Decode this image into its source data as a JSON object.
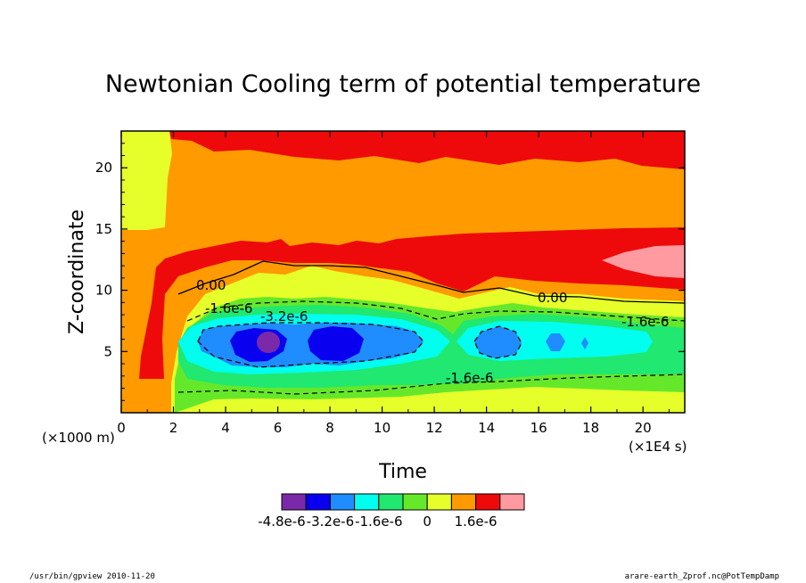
{
  "chart_data": {
    "type": "heatmap",
    "title": "Newtonian Cooling term of potential temperature",
    "xlabel": "Time",
    "ylabel": "Z-coordinate",
    "x_unit": "(×1E4 s)",
    "y_unit": "(×1000 m)",
    "x_range": [
      0,
      21.6
    ],
    "y_range": [
      0,
      23
    ],
    "x_ticks": [
      "0",
      "2",
      "4",
      "6",
      "8",
      "10",
      "12",
      "14",
      "16",
      "18",
      "20"
    ],
    "y_ticks": [
      "5",
      "10",
      "15",
      "20"
    ],
    "levels": [
      {
        "from": -4.8e-06,
        "to": -4e-06,
        "color": "#7a2aa8"
      },
      {
        "from": -4e-06,
        "to": -3.2e-06,
        "color": "#0a00f0"
      },
      {
        "from": -3.2e-06,
        "to": -2.4e-06,
        "color": "#1f8cff"
      },
      {
        "from": -2.4e-06,
        "to": -1.6e-06,
        "color": "#00ffee"
      },
      {
        "from": -1.6e-06,
        "to": -8e-07,
        "color": "#20e870"
      },
      {
        "from": -8e-07,
        "to": 0,
        "color": "#66e82a"
      },
      {
        "from": 0,
        "to": 8e-07,
        "color": "#e6ff2a"
      },
      {
        "from": 8e-07,
        "to": 1.6e-06,
        "color": "#ff9a00"
      },
      {
        "from": 1.6e-06,
        "to": 2.4e-06,
        "color": "#ee0a0a"
      },
      {
        "from": 2.4e-06,
        "to": 3.2e-06,
        "color": "#ff9aa0"
      }
    ],
    "colorbar_labels": [
      "-4.8e-6",
      "-3.2e-6",
      "-1.6e-6",
      "0",
      "1.6e-6"
    ],
    "contour_labels": [
      "0.00",
      "0.00",
      "-1.6e-6",
      "-1.6e-6",
      "-1.6e-6",
      "-3.2e-6"
    ],
    "grid": false
  },
  "footer": {
    "left": "/usr/bin/gpview   2010-11-20",
    "right": "arare-earth_Zprof.nc@PotTempDamp"
  },
  "colors": {
    "frame": "#000000",
    "background": "#ffffff"
  }
}
